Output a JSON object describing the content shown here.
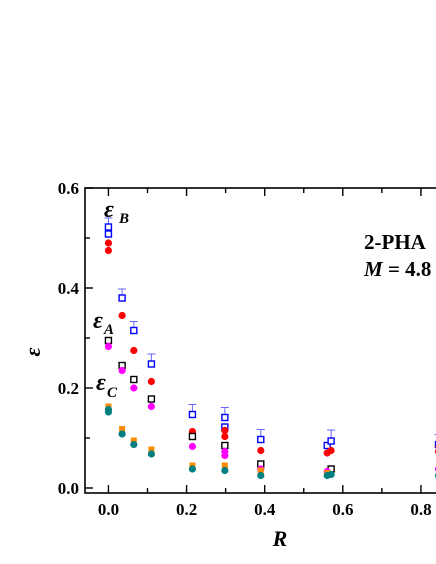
{
  "chart_data": {
    "type": "scatter",
    "title": "",
    "xlabel": "R",
    "ylabel": "ε",
    "xlim": [
      -0.06,
      0.9
    ],
    "ylim": [
      -0.01,
      0.6
    ],
    "x_ticks": [
      "0.0",
      "0.2",
      "0.4",
      "0.6",
      "0.8"
    ],
    "y_ticks": [
      "0.0",
      "0.2",
      "0.4",
      "0.6"
    ],
    "grid": false,
    "annotation": {
      "line1": "2-PHA",
      "line2_var": "M",
      "line2_rest": " = 4.8"
    },
    "series_labels": [
      {
        "symbol": "ε",
        "subscript": "B"
      },
      {
        "symbol": "ε",
        "subscript": "A"
      },
      {
        "symbol": "ε",
        "subscript": "C"
      }
    ],
    "series": [
      {
        "name": "",
        "marker": "open-square",
        "color": "#0000ff",
        "error_color": "#6666ff",
        "x": [
          0.0,
          0.0,
          0.035,
          0.065,
          0.11,
          0.215,
          0.298,
          0.298,
          0.39,
          0.56,
          0.57,
          0.845
        ],
        "y": [
          0.522,
          0.508,
          0.38,
          0.315,
          0.248,
          0.147,
          0.141,
          0.122,
          0.097,
          0.085,
          0.094,
          0.087
        ],
        "err": [
          0.018,
          0.0,
          0.018,
          0.018,
          0.02,
          0.02,
          0.02,
          0.0,
          0.02,
          0.0,
          0.022,
          0.02
        ]
      },
      {
        "name": "",
        "marker": "filled-circle",
        "color": "#ff0000",
        "x": [
          0.0,
          0.0,
          0.035,
          0.065,
          0.11,
          0.215,
          0.298,
          0.298,
          0.39,
          0.56,
          0.57,
          0.845
        ],
        "y": [
          0.49,
          0.475,
          0.345,
          0.275,
          0.213,
          0.113,
          0.115,
          0.103,
          0.075,
          0.07,
          0.075,
          0.073
        ],
        "err": [
          0,
          0,
          0,
          0,
          0,
          0,
          0,
          0,
          0,
          0,
          0,
          0.01
        ]
      },
      {
        "name": "",
        "marker": "open-square",
        "color": "#000000",
        "x": [
          0.0,
          0.035,
          0.065,
          0.11,
          0.215,
          0.298,
          0.39,
          0.57
        ],
        "y": [
          0.295,
          0.245,
          0.217,
          0.178,
          0.103,
          0.085,
          0.048,
          0.038
        ],
        "err": [
          0,
          0,
          0,
          0,
          0,
          0,
          0,
          0
        ]
      },
      {
        "name": "",
        "marker": "filled-circle",
        "color": "#ff00ff",
        "x": [
          0.0,
          0.035,
          0.065,
          0.11,
          0.215,
          0.298,
          0.298,
          0.39,
          0.56,
          0.845
        ],
        "y": [
          0.283,
          0.235,
          0.2,
          0.163,
          0.083,
          0.073,
          0.065,
          0.038,
          0.033,
          0.038
        ],
        "err": [
          0,
          0,
          0,
          0,
          0,
          0,
          0,
          0,
          0,
          0
        ]
      },
      {
        "name": "",
        "marker": "filled-square",
        "color": "#ff8c00",
        "x": [
          0.0,
          0.035,
          0.065,
          0.11,
          0.215,
          0.298,
          0.39,
          0.56
        ],
        "y": [
          0.163,
          0.118,
          0.095,
          0.077,
          0.045,
          0.045,
          0.035,
          0.03
        ],
        "err": [
          0,
          0,
          0,
          0,
          0,
          0,
          0,
          0
        ]
      },
      {
        "name": "",
        "marker": "filled-circle",
        "color": "#008080",
        "x": [
          0.0,
          0.0,
          0.035,
          0.065,
          0.11,
          0.215,
          0.298,
          0.39,
          0.56,
          0.57,
          0.845
        ],
        "y": [
          0.157,
          0.152,
          0.108,
          0.087,
          0.068,
          0.038,
          0.035,
          0.025,
          0.025,
          0.027,
          0.025
        ],
        "err": [
          0,
          0,
          0,
          0,
          0,
          0,
          0,
          0,
          0,
          0,
          0
        ]
      }
    ]
  }
}
